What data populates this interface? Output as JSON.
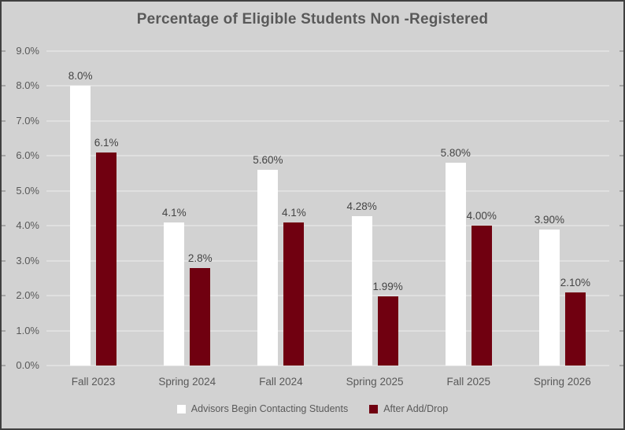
{
  "title": "Percentage of Eligible Students Non -Registered",
  "chart_data": {
    "type": "bar",
    "title": "Percentage of Eligible Students Non -Registered",
    "categories": [
      "Fall 2023",
      "Spring 2024",
      "Fall 2024",
      "Spring 2025",
      "Fall 2025",
      "Spring 2026"
    ],
    "series": [
      {
        "name": "Advisors Begin Contacting Students",
        "color": "#ffffff",
        "values": [
          8.0,
          4.1,
          5.6,
          4.28,
          5.8,
          3.9
        ],
        "labels": [
          "8.0%",
          "4.1%",
          "5.60%",
          "4.28%",
          "5.80%",
          "3.90%"
        ]
      },
      {
        "name": "After Add/Drop",
        "color": "#700010",
        "values": [
          6.1,
          2.8,
          4.1,
          1.99,
          4.0,
          2.1
        ],
        "labels": [
          "6.1%",
          "2.8%",
          "4.1%",
          "1.99%",
          "4.00%",
          "2.10%"
        ]
      }
    ],
    "xlabel": "",
    "ylabel": "",
    "ylim": [
      0,
      9
    ],
    "ytick_step": 1,
    "ytick_labels": [
      "0.0%",
      "1.0%",
      "2.0%",
      "3.0%",
      "4.0%",
      "5.0%",
      "6.0%",
      "7.0%",
      "8.0%",
      "9.0%"
    ],
    "grid": true,
    "legend_position": "bottom"
  },
  "colors": {
    "background": "#d2d2d2",
    "gridline": "#e0e0e0",
    "title_text": "#595959",
    "axis_text": "#595959",
    "value_text": "#444444",
    "tick_mark": "#a6a6a6",
    "border": "#404040",
    "series1": "#ffffff",
    "series2": "#700010"
  }
}
